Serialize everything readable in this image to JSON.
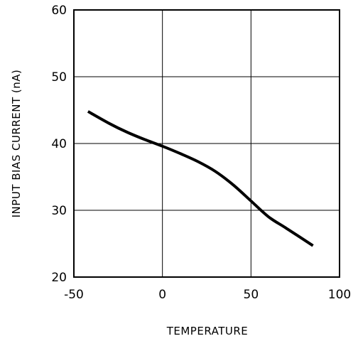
{
  "chart_data": {
    "type": "line",
    "title": "",
    "xlabel": "TEMPERATURE",
    "ylabel": "INPUT BIAS CURRENT (nA)",
    "xlim": [
      -50,
      100
    ],
    "ylim": [
      20,
      60
    ],
    "xticks": [
      "-50",
      "0",
      "50",
      "100"
    ],
    "yticks": [
      "20",
      "30",
      "40",
      "50",
      "60"
    ],
    "grid": true,
    "legend": "none",
    "line_color": "#000000",
    "series": [
      {
        "x": [
          -42,
          -30,
          -20,
          -10,
          0,
          10,
          20,
          30,
          40,
          50,
          60,
          70,
          85
        ],
        "y": [
          44.8,
          43.0,
          41.7,
          40.6,
          39.6,
          38.5,
          37.3,
          35.8,
          33.8,
          31.4,
          29.0,
          27.3,
          24.7
        ]
      }
    ]
  }
}
